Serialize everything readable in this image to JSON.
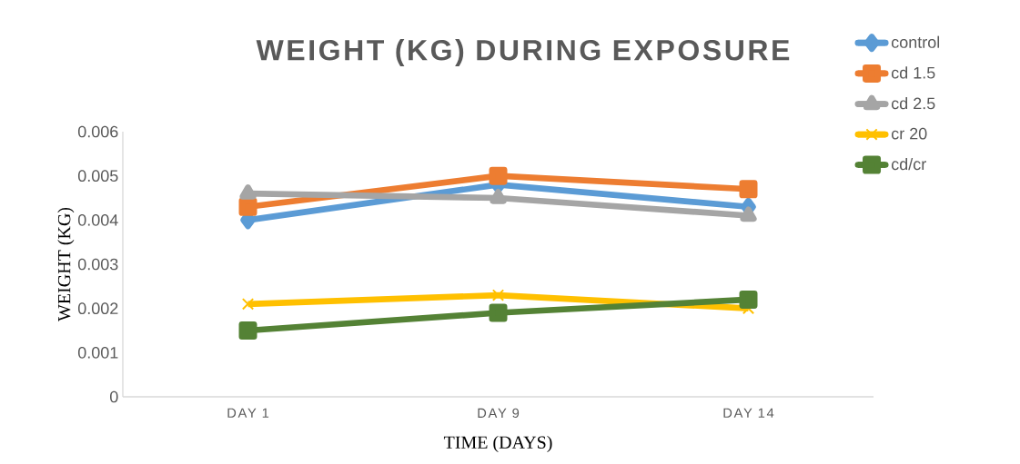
{
  "chart_data": {
    "type": "line",
    "title": "WEIGHT (KG) DURING EXPOSURE",
    "xlabel": "TIME (DAYS)",
    "ylabel": "WEIGHT (KG)",
    "categories": [
      "DAY 1",
      "DAY 9",
      "DAY 14"
    ],
    "series": [
      {
        "name": "control",
        "color": "#5b9bd5",
        "marker": "diamond",
        "values": [
          0.004,
          0.0048,
          0.0043
        ]
      },
      {
        "name": "cd 1.5",
        "color": "#ed7d31",
        "marker": "square",
        "values": [
          0.0043,
          0.005,
          0.0047
        ]
      },
      {
        "name": "cd 2.5",
        "color": "#a5a5a5",
        "marker": "triangle",
        "values": [
          0.0046,
          0.0045,
          0.0041
        ]
      },
      {
        "name": "cr 20",
        "color": "#ffc000",
        "marker": "cross",
        "values": [
          0.0021,
          0.0023,
          0.002
        ]
      },
      {
        "name": "cd/cr",
        "color": "#548235",
        "marker": "square",
        "values": [
          0.0015,
          0.0019,
          0.0022
        ]
      }
    ],
    "ylim": [
      0,
      0.006
    ],
    "yticks": [
      0,
      0.001,
      0.002,
      0.003,
      0.004,
      0.005,
      0.006
    ],
    "grid": false,
    "legend": "top right",
    "line_style": "solid"
  }
}
